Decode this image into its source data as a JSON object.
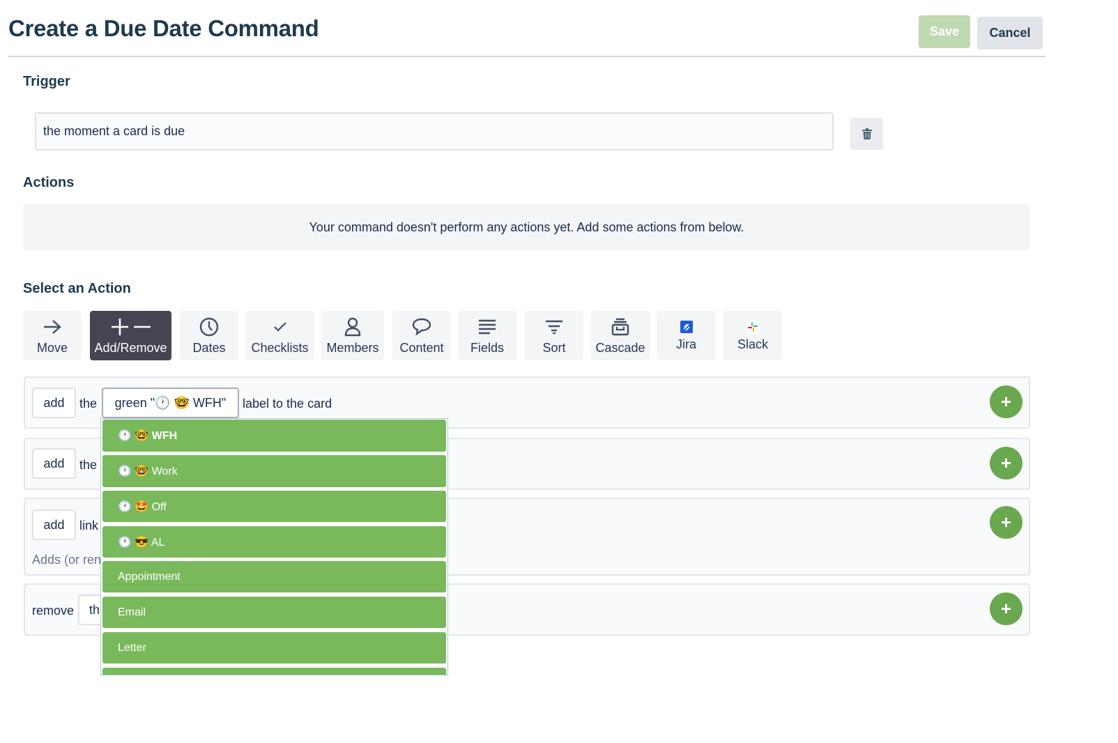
{
  "header": {
    "title": "Create a Due Date Command",
    "save_label": "Save",
    "cancel_label": "Cancel"
  },
  "trigger": {
    "heading": "Trigger",
    "value": "the moment a card is due",
    "delete_icon": "trash-icon"
  },
  "actions": {
    "heading": "Actions",
    "empty_message": "Your command doesn't perform any actions yet. Add some actions from below."
  },
  "select_action": {
    "heading": "Select an Action",
    "categories": [
      {
        "label": "Move",
        "icon": "arrow-right-icon"
      },
      {
        "label": "Add/Remove",
        "icon": "plus-minus-icon",
        "active": true
      },
      {
        "label": "Dates",
        "icon": "clock-icon"
      },
      {
        "label": "Checklists",
        "icon": "check-icon"
      },
      {
        "label": "Members",
        "icon": "person-icon"
      },
      {
        "label": "Content",
        "icon": "speech-bubble-icon"
      },
      {
        "label": "Fields",
        "icon": "lines-icon"
      },
      {
        "label": "Sort",
        "icon": "filter-icon"
      },
      {
        "label": "Cascade",
        "icon": "archive-icon"
      },
      {
        "label": "Jira",
        "icon": "jira-logo-icon"
      },
      {
        "label": "Slack",
        "icon": "slack-logo-icon"
      }
    ]
  },
  "rows": [
    {
      "verb": "add",
      "word": "the",
      "select_value": "green \"🕐 🤓 WFH\"",
      "suffix": "label to the card"
    },
    {
      "verb": "add",
      "word": "the"
    },
    {
      "verb": "add",
      "word": "link",
      "description": "Adds (or ren"
    },
    {
      "verb": "remove",
      "word": "th"
    }
  ],
  "label_dropdown": {
    "color": "#79b95b",
    "options": [
      {
        "label": "🕐 🤓 WFH",
        "selected": true
      },
      {
        "label": "🕐 🤓 Work"
      },
      {
        "label": "🕐 🤩 Off"
      },
      {
        "label": "🕐 😎 AL"
      },
      {
        "label": "Appointment"
      },
      {
        "label": "Email"
      },
      {
        "label": "Letter"
      },
      {
        "label": ""
      }
    ]
  },
  "colors": {
    "accent_green": "#6aa84f",
    "save_disabled": "#bfd9b3",
    "active_tab": "#464452"
  }
}
